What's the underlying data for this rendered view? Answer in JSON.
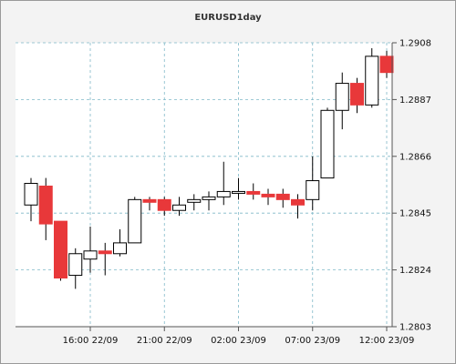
{
  "chart_data": {
    "type": "candlestick",
    "title": "EURUSD1day",
    "xlabel": "",
    "ylabel": "",
    "ylim": [
      1.2803,
      1.2908
    ],
    "y_ticks": [
      "1.2908",
      "1.2887",
      "1.2866",
      "1.2845",
      "1.2824",
      "1.2803"
    ],
    "x_ticks": [
      "16:00 22/09",
      "21:00 22/09",
      "02:00 23/09",
      "07:00 23/09",
      "12:00 23/09"
    ],
    "x_tick_candle_index": [
      4,
      9,
      14,
      19,
      24
    ],
    "grid": true,
    "colors": {
      "up": "#ffffff",
      "down": "#e8383a",
      "outline": "#000000",
      "grid": "#7fb8c8",
      "background": "#ffffff"
    },
    "candles": [
      {
        "open": 1.2848,
        "high": 1.2858,
        "low": 1.2842,
        "close": 1.2856
      },
      {
        "open": 1.2855,
        "high": 1.2858,
        "low": 1.2835,
        "close": 1.2841
      },
      {
        "open": 1.2842,
        "high": 1.2842,
        "low": 1.282,
        "close": 1.2821
      },
      {
        "open": 1.2822,
        "high": 1.2832,
        "low": 1.2817,
        "close": 1.283
      },
      {
        "open": 1.2828,
        "high": 1.284,
        "low": 1.2823,
        "close": 1.2831
      },
      {
        "open": 1.2831,
        "high": 1.2834,
        "low": 1.2822,
        "close": 1.283
      },
      {
        "open": 1.283,
        "high": 1.2839,
        "low": 1.2829,
        "close": 1.2834
      },
      {
        "open": 1.2834,
        "high": 1.2851,
        "low": 1.2834,
        "close": 1.285
      },
      {
        "open": 1.285,
        "high": 1.2851,
        "low": 1.2846,
        "close": 1.2849
      },
      {
        "open": 1.285,
        "high": 1.2851,
        "low": 1.2844,
        "close": 1.2846
      },
      {
        "open": 1.2846,
        "high": 1.2851,
        "low": 1.2844,
        "close": 1.2848
      },
      {
        "open": 1.2849,
        "high": 1.2852,
        "low": 1.2846,
        "close": 1.285
      },
      {
        "open": 1.285,
        "high": 1.2853,
        "low": 1.2846,
        "close": 1.2851
      },
      {
        "open": 1.2851,
        "high": 1.2864,
        "low": 1.2848,
        "close": 1.2853
      },
      {
        "open": 1.2853,
        "high": 1.2858,
        "low": 1.285,
        "close": 1.2853
      },
      {
        "open": 1.2853,
        "high": 1.2856,
        "low": 1.285,
        "close": 1.2852
      },
      {
        "open": 1.2852,
        "high": 1.2854,
        "low": 1.2848,
        "close": 1.2851
      },
      {
        "open": 1.2852,
        "high": 1.2854,
        "low": 1.2847,
        "close": 1.285
      },
      {
        "open": 1.285,
        "high": 1.2852,
        "low": 1.2843,
        "close": 1.2848
      },
      {
        "open": 1.285,
        "high": 1.2866,
        "low": 1.2846,
        "close": 1.2857
      },
      {
        "open": 1.2858,
        "high": 1.2884,
        "low": 1.2858,
        "close": 1.2883
      },
      {
        "open": 1.2883,
        "high": 1.2897,
        "low": 1.2876,
        "close": 1.2893
      },
      {
        "open": 1.2893,
        "high": 1.2895,
        "low": 1.2882,
        "close": 1.2885
      },
      {
        "open": 1.2885,
        "high": 1.2906,
        "low": 1.2884,
        "close": 1.2903
      },
      {
        "open": 1.2903,
        "high": 1.2905,
        "low": 1.2895,
        "close": 1.2897
      }
    ]
  }
}
